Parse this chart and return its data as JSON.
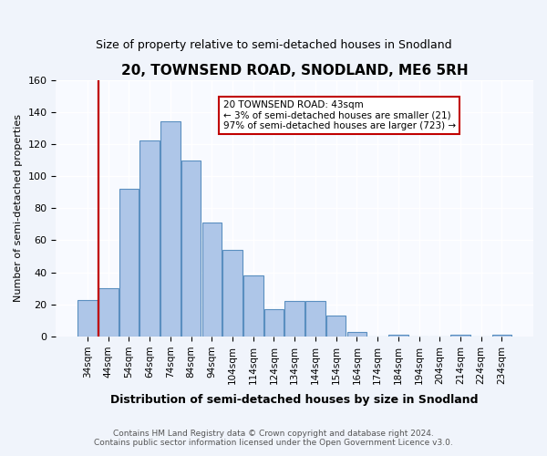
{
  "title": "20, TOWNSEND ROAD, SNODLAND, ME6 5RH",
  "subtitle": "Size of property relative to semi-detached houses in Snodland",
  "xlabel": "Distribution of semi-detached houses by size in Snodland",
  "ylabel": "Number of semi-detached properties",
  "categories": [
    "34sqm",
    "44sqm",
    "54sqm",
    "64sqm",
    "74sqm",
    "84sqm",
    "94sqm",
    "104sqm",
    "114sqm",
    "124sqm",
    "134sqm",
    "144sqm",
    "154sqm",
    "164sqm",
    "174sqm",
    "184sqm",
    "194sqm",
    "204sqm",
    "214sqm",
    "224sqm",
    "234sqm"
  ],
  "values": [
    23,
    30,
    92,
    122,
    134,
    110,
    71,
    54,
    38,
    17,
    22,
    22,
    13,
    3,
    0,
    1,
    0,
    0,
    1,
    0,
    1
  ],
  "highlight_index": 1,
  "highlight_color": "#c00000",
  "bar_color": "#aec6e8",
  "bar_edge_color": "#5a8fc0",
  "ylim": [
    0,
    160
  ],
  "yticks": [
    0,
    20,
    40,
    60,
    80,
    100,
    120,
    140,
    160
  ],
  "annotation_line1": "20 TOWNSEND ROAD: 43sqm",
  "annotation_line2": "← 3% of semi-detached houses are smaller (21)",
  "annotation_line3": "97% of semi-detached houses are larger (723) →",
  "footnote1": "Contains HM Land Registry data © Crown copyright and database right 2024.",
  "footnote2": "Contains public sector information licensed under the Open Government Licence v3.0.",
  "bg_color": "#f0f4fb",
  "plot_bg_color": "#f8faff"
}
